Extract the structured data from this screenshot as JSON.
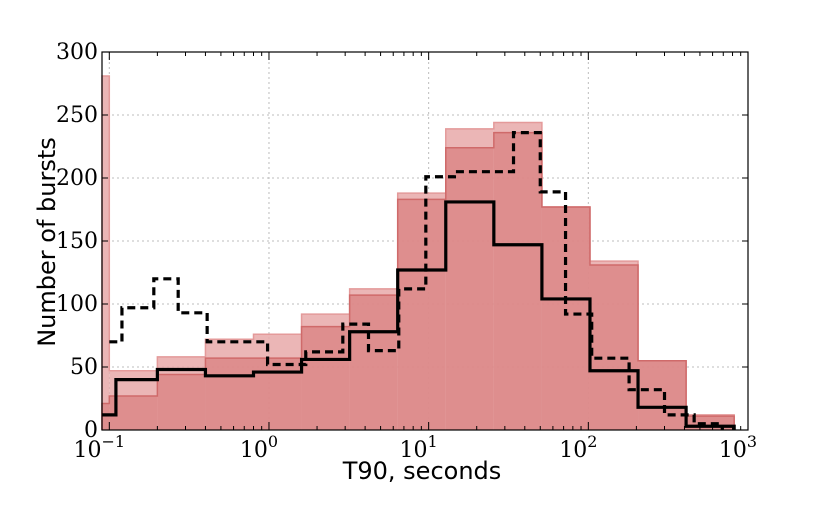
{
  "chart_data": {
    "type": "histogram",
    "xlabel": "T90, seconds",
    "ylabel": "Number of bursts",
    "x_scale": "log",
    "xlim": [
      0.09,
      1000
    ],
    "ylim": [
      0,
      300
    ],
    "grid": true,
    "x_ticks": [
      {
        "value": 0.1,
        "base": "10",
        "exp": "−1"
      },
      {
        "value": 1,
        "base": "10",
        "exp": "0"
      },
      {
        "value": 10,
        "base": "10",
        "exp": "1"
      },
      {
        "value": 100,
        "base": "10",
        "exp": "2"
      },
      {
        "value": 1000,
        "base": "10",
        "exp": "3"
      }
    ],
    "y_ticks": [
      "0",
      "50",
      "100",
      "150",
      "200",
      "250",
      "300"
    ],
    "series": [
      {
        "style": "filled-light",
        "color": "#e8a9a9",
        "edges": [
          0.09,
          0.1,
          0.2,
          0.4,
          0.8,
          1.6,
          3.2,
          6.4,
          12.8,
          25.6,
          51.2,
          102.4,
          204.8,
          409.6,
          819.2
        ],
        "values": [
          281,
          47,
          58,
          72,
          76,
          92,
          112,
          188,
          239,
          244,
          177,
          134,
          55,
          12
        ]
      },
      {
        "style": "filled-dark",
        "color": "#d98080",
        "edges": [
          0.09,
          0.1,
          0.2,
          0.4,
          0.8,
          1.6,
          3.2,
          6.4,
          12.8,
          25.6,
          51.2,
          102.4,
          204.8,
          409.6,
          819.2
        ],
        "values": [
          21,
          27,
          44,
          57,
          57,
          82,
          107,
          183,
          224,
          236,
          177,
          131,
          55,
          11
        ]
      },
      {
        "style": "dashed",
        "color": "#000000",
        "edges": [
          0.1,
          0.12,
          0.19,
          0.27,
          0.41,
          0.98,
          1.7,
          2.9,
          4.2,
          6.5,
          9.6,
          14.5,
          34,
          50,
          72,
          105,
          180,
          300,
          460,
          690
        ],
        "values": [
          70,
          97,
          120,
          93,
          70,
          52,
          62,
          84,
          63,
          112,
          201,
          205,
          236,
          189,
          92,
          57,
          32,
          12,
          5
        ]
      },
      {
        "style": "solid",
        "color": "#000000",
        "edges": [
          0.09,
          0.11,
          0.2,
          0.4,
          0.8,
          1.6,
          3.2,
          6.4,
          12.8,
          25.6,
          51.2,
          102.4,
          204.8,
          409.6,
          819.2
        ],
        "values": [
          12,
          40,
          48,
          43,
          46,
          56,
          78,
          127,
          181,
          147,
          104,
          47,
          18,
          3
        ]
      }
    ]
  }
}
